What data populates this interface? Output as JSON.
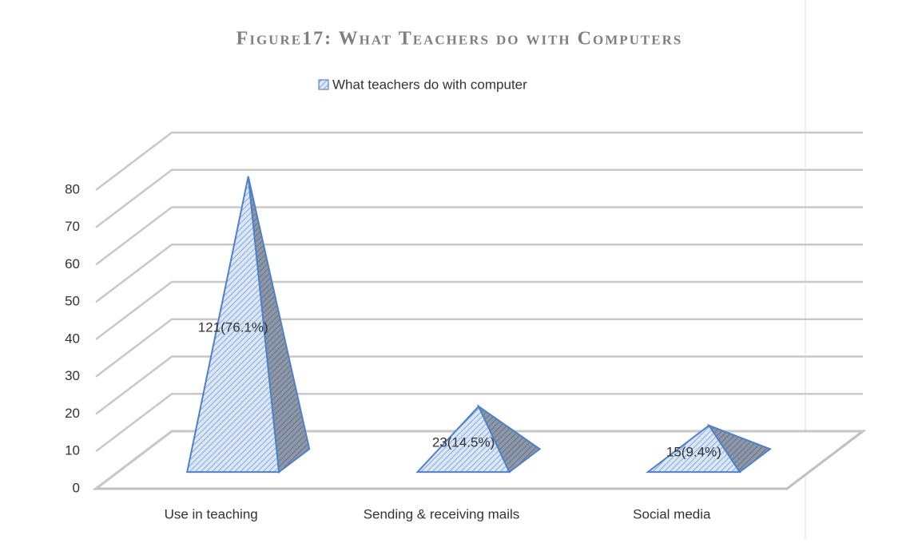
{
  "chart_data": {
    "type": "pyramid3d",
    "title": "Figure17: What Teachers do with Computers",
    "categories": [
      "Use in teaching",
      "Sending  & receiving mails",
      "Social media"
    ],
    "series": [
      {
        "name": "What teachers do with computer",
        "color": "#4472c4",
        "values": [
          76.1,
          14.5,
          9.4
        ],
        "value_labels": [
          "121(76.1%)",
          "23(14.5%)",
          "15(9.4%)"
        ]
      }
    ],
    "ylim": [
      0,
      80
    ],
    "yticks": [
      0,
      10,
      20,
      30,
      40,
      50,
      60,
      70,
      80
    ],
    "grid": true,
    "legend": "top"
  }
}
